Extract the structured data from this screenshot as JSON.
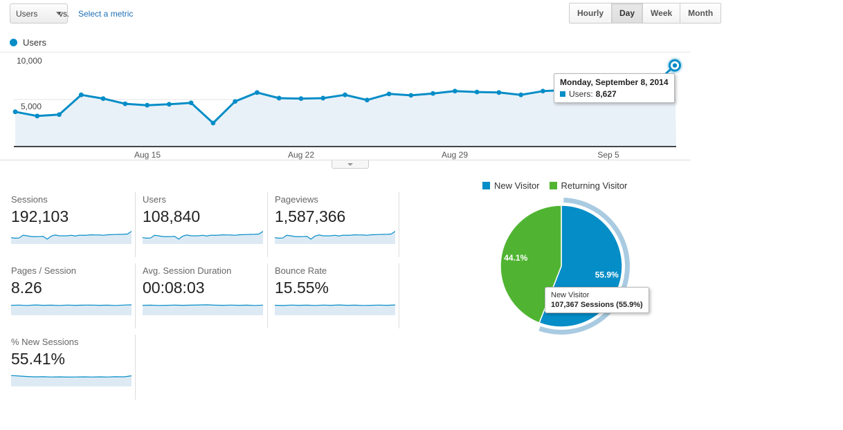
{
  "toolbar": {
    "metric_selector": {
      "label": "Users"
    },
    "vs_label": "vs.",
    "select_metric_label": "Select a metric",
    "period_buttons": [
      {
        "label": "Hourly",
        "active": false
      },
      {
        "label": "Day",
        "active": true
      },
      {
        "label": "Week",
        "active": false
      },
      {
        "label": "Month",
        "active": false
      }
    ]
  },
  "chart": {
    "legend_label": "Users",
    "y_axis_labels": [
      "10,000",
      "5,000"
    ],
    "x_axis_labels": [
      "Aug 15",
      "Aug 22",
      "Aug 29",
      "Sep 5"
    ],
    "tooltip": {
      "title": "Monday, September 8, 2014",
      "series_label": "Users:",
      "value": "8,627"
    }
  },
  "chart_data": [
    {
      "type": "line",
      "title": "Users",
      "x": [
        "Aug 9",
        "Aug 10",
        "Aug 11",
        "Aug 12",
        "Aug 13",
        "Aug 14",
        "Aug 15",
        "Aug 16",
        "Aug 17",
        "Aug 18",
        "Aug 19",
        "Aug 20",
        "Aug 21",
        "Aug 22",
        "Aug 23",
        "Aug 24",
        "Aug 25",
        "Aug 26",
        "Aug 27",
        "Aug 28",
        "Aug 29",
        "Aug 30",
        "Aug 31",
        "Sep 1",
        "Sep 2",
        "Sep 3",
        "Sep 4",
        "Sep 5",
        "Sep 6",
        "Sep 7",
        "Sep 8"
      ],
      "series": [
        {
          "name": "Users",
          "values": [
            3700,
            3250,
            3400,
            5500,
            5100,
            4550,
            4400,
            4500,
            4650,
            2500,
            4800,
            5750,
            5150,
            5100,
            5150,
            5500,
            4950,
            5600,
            5450,
            5650,
            5900,
            5800,
            5750,
            5500,
            5900,
            6000,
            6100,
            6200,
            6300,
            6500,
            8627
          ]
        }
      ],
      "ylim": [
        0,
        10000
      ],
      "yticks": [
        5000,
        10000
      ],
      "grid": "horizontal",
      "highlight_point": {
        "x": "Sep 8",
        "value": 8627,
        "tooltip": "Monday, September 8, 2014 — Users: 8,627"
      }
    },
    {
      "type": "pie",
      "labels": [
        "New Visitor",
        "Returning Visitor"
      ],
      "values": [
        55.9,
        44.1
      ],
      "slice_labels": [
        "55.9%",
        "44.1%"
      ],
      "selected_slice": "New Visitor",
      "tooltip": "New Visitor — 107,367 Sessions (55.9%)",
      "legend_position": "top"
    }
  ],
  "metrics": [
    {
      "label": "Sessions",
      "value": "192,103",
      "spark": "main"
    },
    {
      "label": "Users",
      "value": "108,840",
      "spark": "main"
    },
    {
      "label": "Pageviews",
      "value": "1,587,366",
      "spark": "main"
    },
    {
      "label": "Pages / Session",
      "value": "8.26",
      "spark": "pages_session"
    },
    {
      "label": "Avg. Session Duration",
      "value": "00:08:03",
      "spark": "avg_duration"
    },
    {
      "label": "Bounce Rate",
      "value": "15.55%",
      "spark": "bounce_rate"
    },
    {
      "label": "% New Sessions",
      "value": "55.41%",
      "spark": "new_sessions"
    }
  ],
  "sparklines": {
    "pages_session": [
      0.3,
      0.28,
      0.31,
      0.27,
      0.3,
      0.29,
      0.31,
      0.28,
      0.3,
      0.29,
      0.28,
      0.3,
      0.29,
      0.31,
      0.28,
      0.26
    ],
    "avg_duration": [
      0.3,
      0.29,
      0.31,
      0.3,
      0.28,
      0.3,
      0.29,
      0.27,
      0.26,
      0.29,
      0.3,
      0.28,
      0.3,
      0.29,
      0.31,
      0.28
    ],
    "bounce_rate": [
      0.3,
      0.32,
      0.28,
      0.3,
      0.29,
      0.31,
      0.28,
      0.3,
      0.27,
      0.3,
      0.29,
      0.31,
      0.3,
      0.28,
      0.3,
      0.27
    ],
    "new_sessions": [
      0.22,
      0.26,
      0.3,
      0.33,
      0.32,
      0.34,
      0.33,
      0.35,
      0.34,
      0.33,
      0.34,
      0.33,
      0.34,
      0.32,
      0.33,
      0.24
    ]
  },
  "pie": {
    "legend": [
      {
        "label": "New Visitor",
        "color": "#058dc7"
      },
      {
        "label": "Returning Visitor",
        "color": "#50b432"
      }
    ],
    "slices": [
      {
        "label": "New Visitor",
        "pct": 55.9,
        "pct_label": "55.9%",
        "color": "#058dc7",
        "selected": true
      },
      {
        "label": "Returning Visitor",
        "pct": 44.1,
        "pct_label": "44.1%",
        "color": "#50b432",
        "selected": false
      }
    ],
    "tooltip": {
      "line1": "New Visitor",
      "line2": "107,367 Sessions (55.9%)"
    }
  },
  "colors": {
    "series_blue": "#058dc7",
    "pie_green": "#50b432",
    "area_fill": "#e9f1f8",
    "spark_fill": "#ddeaf4",
    "selection_ring": "#a9cbe2",
    "axis": "#444444",
    "gridline": "#e4e4e4"
  }
}
